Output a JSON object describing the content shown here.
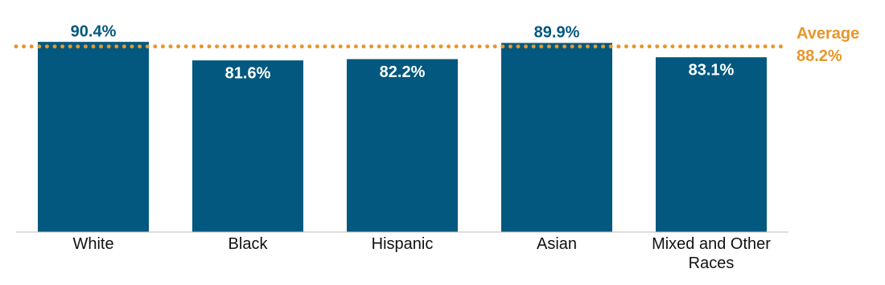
{
  "chart_data": {
    "type": "bar",
    "categories": [
      "White",
      "Black",
      "Hispanic",
      "Asian",
      "Mixed and Other Races"
    ],
    "values": [
      90.4,
      81.6,
      82.2,
      89.9,
      83.1
    ],
    "value_labels": [
      "90.4%",
      "81.6%",
      "82.2%",
      "89.9%",
      "83.1%"
    ],
    "color": "#02587f",
    "ylim": [
      0,
      100
    ],
    "reference_line": {
      "label": "Average",
      "value": 88.2,
      "value_label": "88.2%",
      "color": "#e8962a"
    }
  }
}
